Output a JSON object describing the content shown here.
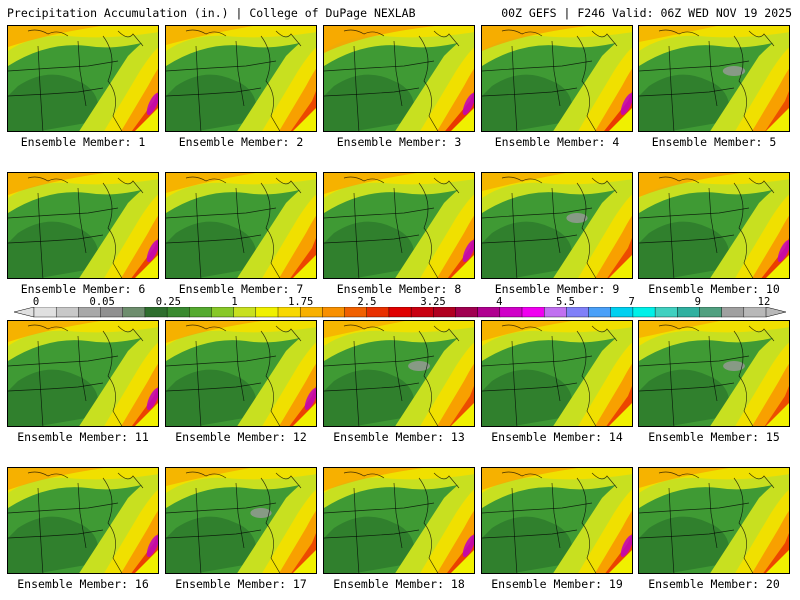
{
  "header": {
    "left": "Precipitation Accumulation (in.) | College of DuPage NEXLAB",
    "right": "00Z GEFS | F246 Valid: 06Z WED NOV 19 2025"
  },
  "panels": [
    {
      "label": "Ensemble Member: 1",
      "intensity": 0.55
    },
    {
      "label": "Ensemble Member: 2",
      "intensity": 0.45
    },
    {
      "label": "Ensemble Member: 3",
      "intensity": 0.85
    },
    {
      "label": "Ensemble Member: 4",
      "intensity": 0.75
    },
    {
      "label": "Ensemble Member: 5",
      "intensity": 0.3
    },
    {
      "label": "Ensemble Member: 6",
      "intensity": 0.6
    },
    {
      "label": "Ensemble Member: 7",
      "intensity": 0.5
    },
    {
      "label": "Ensemble Member: 8",
      "intensity": 0.55
    },
    {
      "label": "Ensemble Member: 9",
      "intensity": 0.4
    },
    {
      "label": "Ensemble Member: 10",
      "intensity": 0.7
    },
    {
      "label": "Ensemble Member: 11",
      "intensity": 0.55
    },
    {
      "label": "Ensemble Member: 12",
      "intensity": 0.6
    },
    {
      "label": "Ensemble Member: 13",
      "intensity": 0.35
    },
    {
      "label": "Ensemble Member: 14",
      "intensity": 0.5
    },
    {
      "label": "Ensemble Member: 15",
      "intensity": 0.35
    },
    {
      "label": "Ensemble Member: 16",
      "intensity": 0.6
    },
    {
      "label": "Ensemble Member: 17",
      "intensity": 0.4
    },
    {
      "label": "Ensemble Member: 18",
      "intensity": 0.65
    },
    {
      "label": "Ensemble Member: 19",
      "intensity": 0.6
    },
    {
      "label": "Ensemble Member: 20",
      "intensity": 0.5
    }
  ],
  "colorbar": {
    "labels": [
      "0",
      "0.05",
      "0.25",
      "1",
      "1.75",
      "2.5",
      "3.25",
      "4",
      "5.5",
      "7",
      "9",
      "12"
    ],
    "colors": [
      "#e0e0e0",
      "#c8c8c8",
      "#a8a8a8",
      "#909090",
      "#6e8e6e",
      "#2e6e2e",
      "#3a8a30",
      "#55aa30",
      "#88c828",
      "#c8e020",
      "#f0f000",
      "#f8d800",
      "#f8b000",
      "#f89000",
      "#f06000",
      "#e83000",
      "#e00000",
      "#c80010",
      "#b00020",
      "#a00050",
      "#b00090",
      "#d000c8",
      "#f000f0",
      "#c070f0",
      "#8080f8",
      "#4aa0f8",
      "#00d0f0",
      "#00f0e8",
      "#40d0c0",
      "#30b0a0",
      "#50a080",
      "#a0a0a0",
      "#b8b8b8"
    ]
  }
}
